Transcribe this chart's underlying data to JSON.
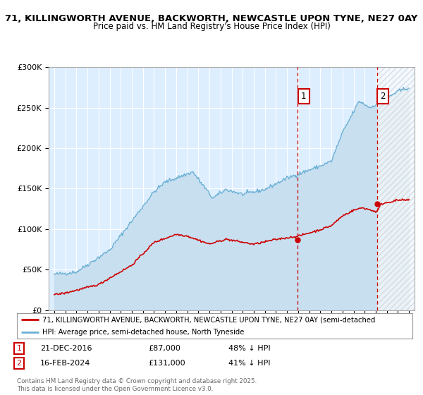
{
  "title_line1": "71, KILLINGWORTH AVENUE, BACKWORTH, NEWCASTLE UPON TYNE, NE27 0AY",
  "title_line2": "Price paid vs. HM Land Registry's House Price Index (HPI)",
  "hpi_color": "#6ab0d4",
  "price_color": "#cc0000",
  "dashed_color": "#cc0000",
  "annotation1_date": "21-DEC-2016",
  "annotation1_price": "£87,000",
  "annotation1_hpi": "48% ↓ HPI",
  "annotation1_year": 2016.97,
  "annotation1_value": 87000,
  "annotation2_date": "16-FEB-2024",
  "annotation2_price": "£131,000",
  "annotation2_hpi": "41% ↓ HPI",
  "annotation2_year": 2024.12,
  "annotation2_value": 131000,
  "legend_label_price": "71, KILLINGWORTH AVENUE, BACKWORTH, NEWCASTLE UPON TYNE, NE27 0AY (semi-detached",
  "legend_label_hpi": "HPI: Average price, semi-detached house, North Tyneside",
  "footnote": "Contains HM Land Registry data © Crown copyright and database right 2025.\nThis data is licensed under the Open Government Licence v3.0.",
  "ylim": [
    0,
    300000
  ],
  "xlim_start": 1994.5,
  "xlim_end": 2027.5,
  "hatch_start": 2025.0,
  "plot_bg": "#ddeeff",
  "grid_color": "#ffffff",
  "fig_bg": "#f0f0f0"
}
